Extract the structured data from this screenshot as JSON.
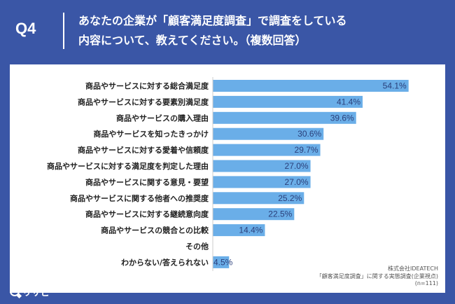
{
  "header": {
    "question": "Q4",
    "title_line1": "あなたの企業が「顧客満足度調査」で調査をしている",
    "title_line2": "内容について、教えてください。（複数回答）"
  },
  "source": {
    "company": "株式会社IDEATECH",
    "survey": "「顧客満足度調査」に関する実態調査(企業視点)",
    "n": "(n=111)"
  },
  "brand": {
    "name": "リサピー",
    "icon": "magnifier-icon"
  },
  "colors": {
    "background": "#3a56a6",
    "bar": "#6aaee8",
    "panel": "#ffffff"
  },
  "chart_data": {
    "type": "bar",
    "orientation": "horizontal",
    "categories": [
      "商品やサービスに対する総合満足度",
      "商品やサービスに対する要素別満足度",
      "商品やサービスの購入理由",
      "商品やサービスを知ったきっかけ",
      "商品やサービスに対する愛着や信頼度",
      "商品やサービスに対する満足度を判定した理由",
      "商品やサービスに関する意見・要望",
      "商品やサービスに関する他者への推奨度",
      "商品やサービスに対する継続意向度",
      "商品やサービスの競合との比較",
      "その他",
      "わからない/答えられない"
    ],
    "values": [
      54.1,
      41.4,
      39.6,
      30.6,
      29.7,
      27.0,
      27.0,
      25.2,
      22.5,
      14.4,
      0,
      4.5
    ],
    "value_labels": [
      "54.1%",
      "41.4%",
      "39.6%",
      "30.6%",
      "29.7%",
      "27.0%",
      "27.0%",
      "25.2%",
      "22.5%",
      "14.4%",
      "",
      "4.5%"
    ],
    "xlim": [
      0,
      60
    ]
  }
}
